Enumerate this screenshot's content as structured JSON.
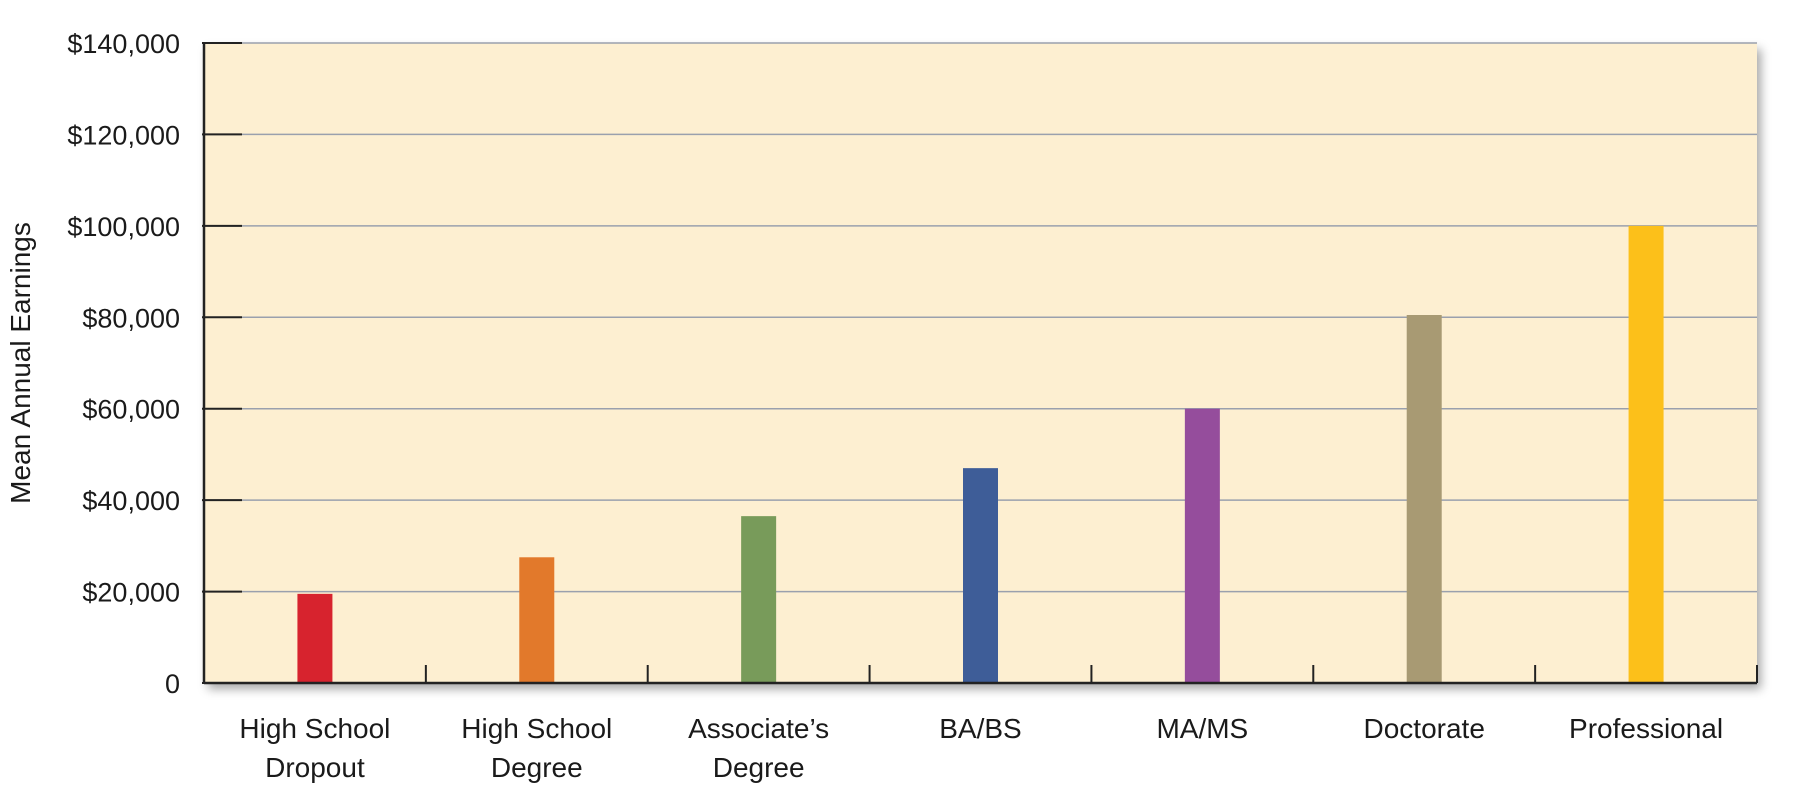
{
  "chart_data": {
    "type": "bar",
    "title": "",
    "xlabel": "",
    "ylabel": "Mean Annual Earnings",
    "ylim": [
      0,
      140000
    ],
    "yticks": [
      0,
      20000,
      40000,
      60000,
      80000,
      100000,
      120000,
      140000
    ],
    "ytick_labels": [
      "0",
      "$20,000",
      "$40,000",
      "$60,000",
      "$80,000",
      "$100,000",
      "$120,000",
      "$140,000"
    ],
    "grid": true,
    "legend": "none",
    "categories": [
      [
        "High School",
        "Dropout"
      ],
      [
        "High School",
        "Degree"
      ],
      [
        "Associate’s",
        "Degree"
      ],
      [
        "BA/BS"
      ],
      [
        "MA/MS"
      ],
      [
        "Doctorate"
      ],
      [
        "Professional"
      ]
    ],
    "values": [
      19500,
      27500,
      36500,
      47000,
      60000,
      80500,
      100000
    ],
    "colors": [
      "#d7232e",
      "#e2792b",
      "#789b5a",
      "#3e5d98",
      "#954d9c",
      "#a89a73",
      "#fcc01a"
    ],
    "background_color": "#fdefd1",
    "grid_color": "#9aa0ad"
  }
}
